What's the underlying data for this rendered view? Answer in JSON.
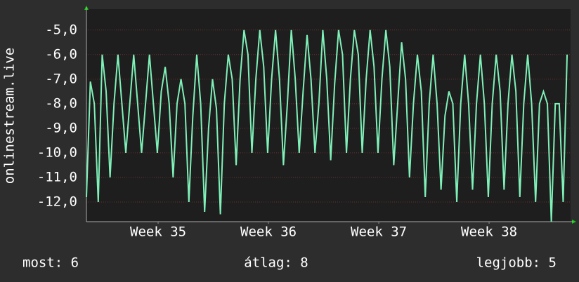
{
  "chart_data": {
    "type": "line",
    "y_label": "onlinestream.live",
    "x": [
      0,
      0.25,
      0.5,
      0.75,
      1,
      1.25,
      1.5,
      1.75,
      2,
      2.25,
      2.5,
      2.75,
      3,
      3.25,
      3.5,
      3.75,
      4,
      4.25,
      4.5,
      4.75,
      5,
      5.25,
      5.5,
      5.75,
      6,
      6.25,
      6.5,
      6.75,
      7,
      7.25,
      7.5,
      7.75,
      8,
      8.25,
      8.5,
      8.75,
      9,
      9.25,
      9.5,
      9.75,
      10,
      10.25,
      10.5,
      10.75,
      11,
      11.25,
      11.5,
      11.75,
      12,
      12.25,
      12.5,
      12.75,
      13,
      13.25,
      13.5,
      13.75,
      14,
      14.25,
      14.5,
      14.75,
      15,
      15.25,
      15.5,
      15.75,
      16,
      16.25,
      16.5,
      16.75,
      17,
      17.25,
      17.5,
      17.75,
      18,
      18.25,
      18.5,
      18.75,
      19,
      19.25,
      19.5,
      19.75,
      20,
      20.25,
      20.5,
      20.75,
      21,
      21.25,
      21.5,
      21.75,
      22,
      22.25,
      22.5,
      22.75,
      23,
      23.25,
      23.5,
      23.75,
      24,
      24.25,
      24.5,
      24.75,
      25,
      25.25,
      25.5,
      25.75,
      26,
      26.25,
      26.5,
      26.75,
      27,
      27.25,
      27.5,
      27.75,
      28,
      28.25,
      28.5,
      28.75,
      29,
      29.25,
      29.5,
      29.75,
      30,
      30.25,
      30.5
    ],
    "series": [
      {
        "name": "onlinestream.live",
        "color": "#7ff0b8",
        "values": [
          -11.8,
          -7.1,
          -8,
          -12,
          -6,
          -7.5,
          -11,
          -8,
          -6,
          -8,
          -10,
          -8,
          -6,
          -8,
          -10,
          -8,
          -6,
          -8,
          -10,
          -7.5,
          -6.5,
          -8,
          -11,
          -8,
          -7,
          -8,
          -12,
          -8.5,
          -6,
          -8,
          -12.4,
          -9,
          -7,
          -8.2,
          -12.5,
          -8,
          -6,
          -7,
          -10.5,
          -7,
          -5,
          -6,
          -10,
          -7,
          -5,
          -6.5,
          -10,
          -7,
          -5,
          -7,
          -10.5,
          -8,
          -5,
          -7,
          -10,
          -7.5,
          -5.2,
          -7,
          -10,
          -8,
          -5,
          -7,
          -10.3,
          -7.2,
          -5,
          -6,
          -10,
          -7,
          -5,
          -6,
          -10,
          -7,
          -5,
          -6.5,
          -10,
          -7,
          -5,
          -6.5,
          -10.5,
          -8,
          -5.5,
          -7,
          -11,
          -8,
          -6,
          -7.5,
          -11.8,
          -8,
          -6,
          -8,
          -11.5,
          -8.5,
          -7.5,
          -8,
          -12,
          -8,
          -6,
          -8,
          -11.5,
          -8,
          -6,
          -8,
          -11.8,
          -8,
          -6,
          -7.5,
          -11.5,
          -8,
          -6,
          -7.5,
          -11.8,
          -8,
          -6,
          -8,
          -12,
          -8,
          -7.5,
          -8,
          -12.8,
          -8,
          -8,
          -12,
          -6
        ]
      }
    ],
    "xlim": [
      0,
      30.72
    ],
    "xticks": [
      {
        "value": 4.55,
        "label": "Week 35"
      },
      {
        "value": 11.55,
        "label": "Week 36"
      },
      {
        "value": 18.55,
        "label": "Week 37"
      },
      {
        "value": 25.55,
        "label": "Week 38"
      }
    ],
    "ylim": [
      -12.8,
      -4.15
    ],
    "yticks": [
      {
        "value": -5,
        "label": "-5,0"
      },
      {
        "value": -6,
        "label": "-6,0"
      },
      {
        "value": -7,
        "label": "-7,0"
      },
      {
        "value": -8,
        "label": "-8,0"
      },
      {
        "value": -9,
        "label": "-9,0"
      },
      {
        "value": -10,
        "label": "-10,0"
      },
      {
        "value": -11,
        "label": "-11,0"
      },
      {
        "value": -12,
        "label": "-12,0"
      }
    ],
    "grid": true,
    "stats": [
      "most: 6",
      "átlag: 8",
      "legjobb: 5"
    ]
  }
}
